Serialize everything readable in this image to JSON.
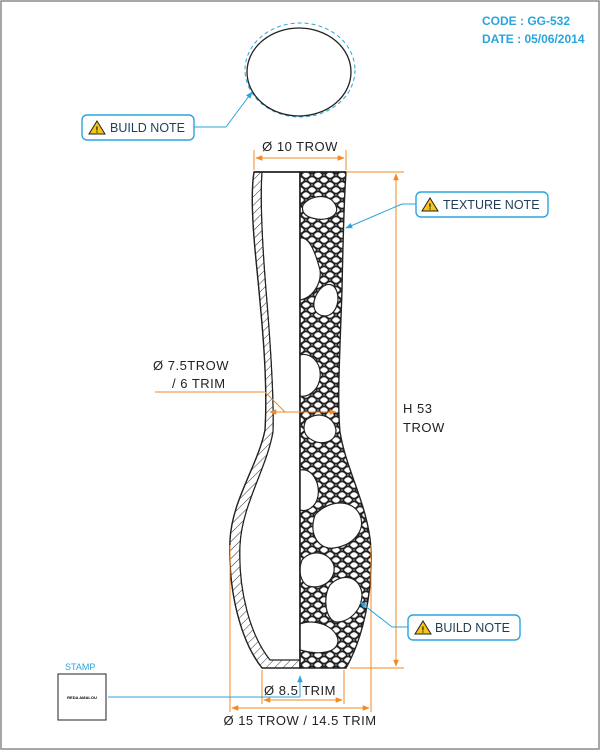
{
  "header": {
    "code": "CODE : GG-532",
    "date": "DATE : 05/06/2014"
  },
  "notes": {
    "build_note_top": "BUILD NOTE",
    "texture_note": "TEXTURE NOTE",
    "build_note_bottom": "BUILD NOTE",
    "warning_glyph": "!"
  },
  "dimensions": {
    "top_diameter": "Ø 10 TROW",
    "neck_line1": "Ø 7.5TROW",
    "neck_line2": "/ 6 TRIM",
    "height_line1": "H 53",
    "height_line2": "TROW",
    "base_diameter": "Ø 8.5 TRIM",
    "body_diameter": "Ø 15 TROW / 14.5 TRIM"
  },
  "stamp": {
    "label": "STAMP",
    "signature": "REDA AMALOU"
  },
  "colors": {
    "accent": "#2aa5dc",
    "dimension": "#f08a24",
    "line": "#222222",
    "frame": "#8a8a8a"
  },
  "icons": [
    "warning-icon",
    "texture-pattern"
  ]
}
